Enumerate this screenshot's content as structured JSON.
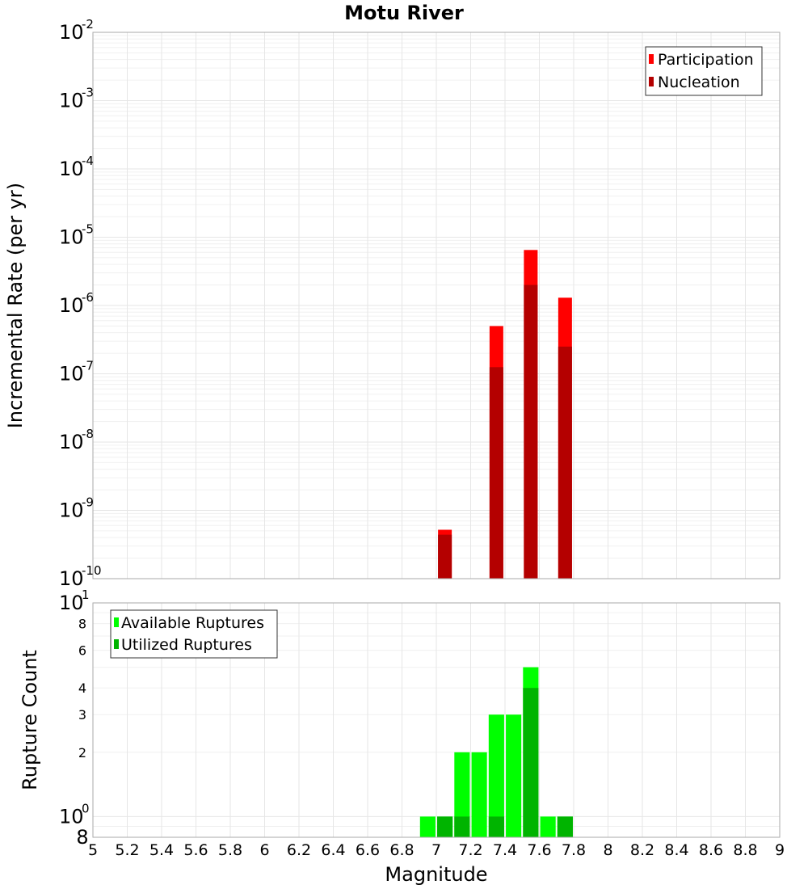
{
  "chart_data": [
    {
      "type": "bar",
      "title": "Motu River",
      "ylabel": "Incremental Rate (per yr)",
      "yscale": "log",
      "ylim": [
        1e-10,
        0.01
      ],
      "xlim": [
        5,
        9
      ],
      "bar_width": 0.08,
      "legend_position": "top-right",
      "grid": true,
      "series": [
        {
          "name": "Participation",
          "color": "#ff0000",
          "x": [
            7.05,
            7.35,
            7.55,
            7.75
          ],
          "values": [
            5.2e-10,
            5e-07,
            6.5e-06,
            1.3e-06
          ]
        },
        {
          "name": "Nucleation",
          "color": "#b40000",
          "x": [
            7.05,
            7.35,
            7.55,
            7.75
          ],
          "values": [
            4.4e-10,
            1.25e-07,
            2e-06,
            2.5e-07
          ]
        }
      ],
      "y_ticks": [
        {
          "value": 0.01,
          "base": "10",
          "exp": "-2"
        },
        {
          "value": 0.001,
          "base": "10",
          "exp": "-3"
        },
        {
          "value": 0.0001,
          "base": "10",
          "exp": "-4"
        },
        {
          "value": 1e-05,
          "base": "10",
          "exp": "-5"
        },
        {
          "value": 1e-06,
          "base": "10",
          "exp": "-6"
        },
        {
          "value": 1e-07,
          "base": "10",
          "exp": "-7"
        },
        {
          "value": 1e-08,
          "base": "10",
          "exp": "-8"
        },
        {
          "value": 1e-09,
          "base": "10",
          "exp": "-9"
        },
        {
          "value": 1e-10,
          "base": "10",
          "exp": "-10"
        }
      ]
    },
    {
      "type": "bar",
      "ylabel": "Rupture Count",
      "xlabel": "Magnitude",
      "yscale": "log",
      "ylim": [
        0.8,
        10
      ],
      "xlim": [
        5,
        9
      ],
      "bar_width": 0.09,
      "legend_position": "top-left",
      "grid": true,
      "series": [
        {
          "name": "Available Ruptures",
          "color": "#00ff00",
          "x": [
            6.95,
            7.05,
            7.15,
            7.25,
            7.35,
            7.45,
            7.55,
            7.65,
            7.75
          ],
          "values": [
            1,
            1,
            2,
            2,
            3,
            3,
            5,
            1,
            1
          ]
        },
        {
          "name": "Utilized Ruptures",
          "color": "#00b400",
          "x": [
            7.05,
            7.15,
            7.35,
            7.55,
            7.75
          ],
          "values": [
            1,
            1,
            1,
            4,
            1
          ]
        }
      ],
      "y_ticks_big": [
        {
          "value": 10,
          "base": "10",
          "exp": "1"
        },
        {
          "value": 1,
          "base": "10",
          "exp": "0"
        }
      ],
      "y_ticks_small": [
        {
          "value": 8,
          "label": "8"
        },
        {
          "value": 6,
          "label": "6"
        },
        {
          "value": 4,
          "label": "4"
        },
        {
          "value": 3,
          "label": "3"
        },
        {
          "value": 2,
          "label": "2"
        }
      ],
      "y_tick_bottom": {
        "value": 0.8,
        "label": "8"
      },
      "x_ticks": [
        {
          "value": 5,
          "label": "5"
        },
        {
          "value": 5.2,
          "label": "5.2"
        },
        {
          "value": 5.4,
          "label": "5.4"
        },
        {
          "value": 5.6,
          "label": "5.6"
        },
        {
          "value": 5.8,
          "label": "5.8"
        },
        {
          "value": 6,
          "label": "6"
        },
        {
          "value": 6.2,
          "label": "6.2"
        },
        {
          "value": 6.4,
          "label": "6.4"
        },
        {
          "value": 6.6,
          "label": "6.6"
        },
        {
          "value": 6.8,
          "label": "6.8"
        },
        {
          "value": 7,
          "label": "7"
        },
        {
          "value": 7.2,
          "label": "7.2"
        },
        {
          "value": 7.4,
          "label": "7.4"
        },
        {
          "value": 7.6,
          "label": "7.6"
        },
        {
          "value": 7.8,
          "label": "7.8"
        },
        {
          "value": 8,
          "label": "8"
        },
        {
          "value": 8.2,
          "label": "8.2"
        },
        {
          "value": 8.4,
          "label": "8.4"
        },
        {
          "value": 8.6,
          "label": "8.6"
        },
        {
          "value": 8.8,
          "label": "8.8"
        },
        {
          "value": 9,
          "label": "9"
        }
      ]
    }
  ]
}
